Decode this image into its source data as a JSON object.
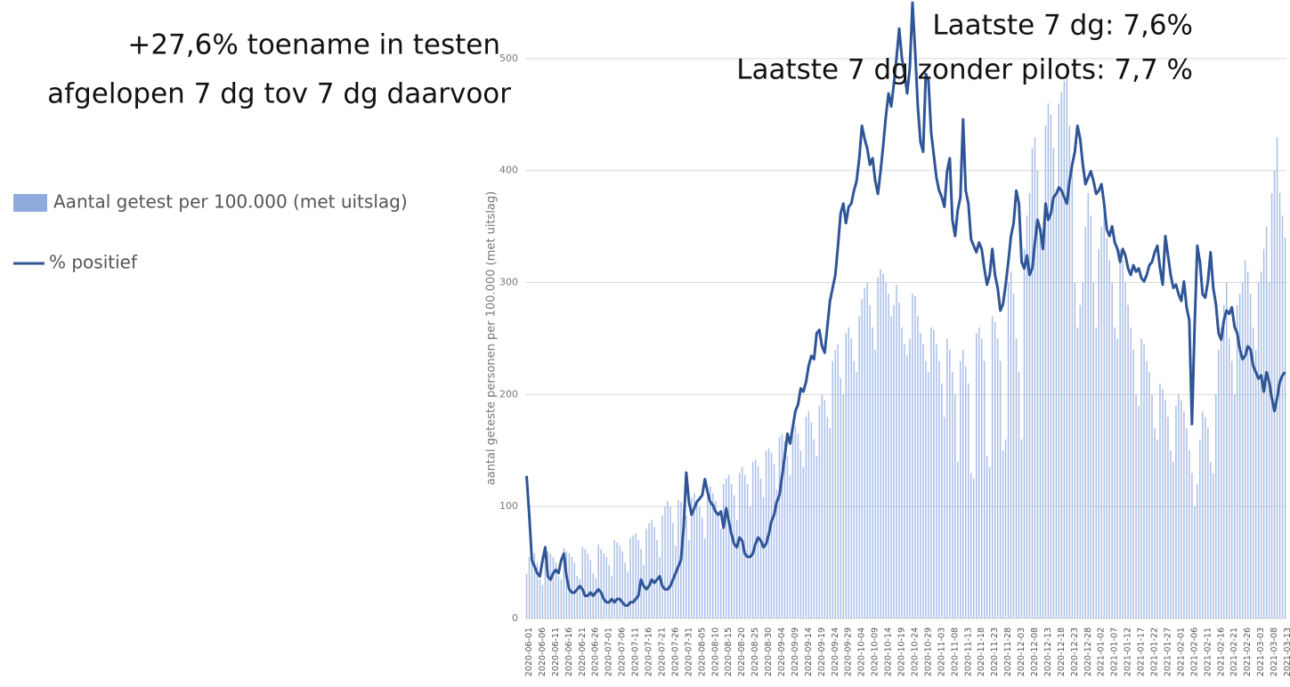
{
  "chart_data": {
    "type": "bar",
    "annotations": [
      "+27,6% toename in testen",
      "afgelopen 7 dg tov 7 dg daarvoor",
      "Laatste 7 dg: 7,6%",
      "Laatste 7 dg zonder pilots: 7,7 %"
    ],
    "y_label": "aantal geteste personen per 100.000 (met uitslag)",
    "categories": [
      "2020-06-01",
      null,
      null,
      null,
      null,
      "2020-06-06",
      null,
      null,
      null,
      null,
      "2020-06-11",
      null,
      null,
      null,
      null,
      "2020-06-16",
      null,
      null,
      null,
      null,
      "2020-06-21",
      null,
      null,
      null,
      null,
      "2020-06-26",
      null,
      null,
      null,
      null,
      "2020-07-01",
      null,
      null,
      null,
      null,
      "2020-07-06",
      null,
      null,
      null,
      null,
      "2020-07-11",
      null,
      null,
      null,
      null,
      "2020-07-16",
      null,
      null,
      null,
      null,
      "2020-07-21",
      null,
      null,
      null,
      null,
      "2020-07-26",
      null,
      null,
      null,
      null,
      "2020-07-31",
      null,
      null,
      null,
      null,
      "2020-08-05",
      null,
      null,
      null,
      null,
      "2020-08-10",
      null,
      null,
      null,
      null,
      "2020-08-15",
      null,
      null,
      null,
      null,
      "2020-08-20",
      null,
      null,
      null,
      null,
      "2020-08-25",
      null,
      null,
      null,
      null,
      "2020-08-30",
      null,
      null,
      null,
      null,
      "2020-09-04",
      null,
      null,
      null,
      null,
      "2020-09-09",
      null,
      null,
      null,
      null,
      "2020-09-14",
      null,
      null,
      null,
      null,
      "2020-09-19",
      null,
      null,
      null,
      null,
      "2020-09-24",
      null,
      null,
      null,
      null,
      "2020-09-29",
      null,
      null,
      null,
      null,
      "2020-10-04",
      null,
      null,
      null,
      null,
      "2020-10-09",
      null,
      null,
      null,
      null,
      "2020-10-14",
      null,
      null,
      null,
      null,
      "2020-10-19",
      null,
      null,
      null,
      null,
      "2020-10-24",
      null,
      null,
      null,
      null,
      "2020-10-29",
      null,
      null,
      null,
      null,
      "2020-11-03",
      null,
      null,
      null,
      null,
      "2020-11-08",
      null,
      null,
      null,
      null,
      "2020-11-13",
      null,
      null,
      null,
      null,
      "2020-11-18",
      null,
      null,
      null,
      null,
      "2020-11-23",
      null,
      null,
      null,
      null,
      "2020-11-28",
      null,
      null,
      null,
      null,
      "2020-12-03",
      null,
      null,
      null,
      null,
      "2020-12-08",
      null,
      null,
      null,
      null,
      "2020-12-13",
      null,
      null,
      null,
      null,
      "2020-12-18",
      null,
      null,
      null,
      null,
      "2020-12-23",
      null,
      null,
      null,
      null,
      "2020-12-28",
      null,
      null,
      null,
      null,
      "2021-01-02",
      null,
      null,
      null,
      null,
      "2021-01-07",
      null,
      null,
      null,
      null,
      "2021-01-12",
      null,
      null,
      null,
      null,
      "2021-01-17",
      null,
      null,
      null,
      null,
      "2021-01-22",
      null,
      null,
      null,
      null,
      "2021-01-27",
      null,
      null,
      null,
      null,
      "2021-02-01",
      null,
      null,
      null,
      null,
      "2021-02-06",
      null,
      null,
      null,
      null,
      "2021-02-11",
      null,
      null,
      null,
      null,
      "2021-02-16",
      null,
      null,
      null,
      null,
      "2021-02-21",
      null,
      null,
      null,
      null,
      "2021-02-26",
      null,
      null,
      null,
      null,
      "2021-03-03",
      null,
      null,
      null,
      null,
      "2021-03-08",
      null,
      null,
      null,
      null,
      "2021-03-13"
    ],
    "series": [
      {
        "name": "Aantal getest per 100.000 (met uitslag)",
        "type": "bar",
        "color": "#8faadc",
        "values": [
          40,
          55,
          60,
          58,
          50,
          35,
          30,
          62,
          60,
          58,
          55,
          50,
          38,
          35,
          63,
          60,
          58,
          55,
          50,
          38,
          35,
          64,
          62,
          58,
          52,
          40,
          36,
          66,
          62,
          58,
          55,
          48,
          38,
          70,
          68,
          65,
          60,
          50,
          42,
          72,
          74,
          76,
          70,
          62,
          48,
          80,
          85,
          88,
          82,
          70,
          55,
          92,
          100,
          105,
          100,
          85,
          65,
          106,
          104,
          98,
          92,
          70,
          108,
          112,
          106,
          100,
          90,
          72,
          115,
          118,
          112,
          105,
          95,
          80,
          120,
          125,
          128,
          120,
          110,
          88,
          130,
          135,
          128,
          120,
          100,
          140,
          142,
          136,
          125,
          108,
          150,
          152,
          148,
          138,
          115,
          162,
          165,
          158,
          145,
          128,
          168,
          172,
          165,
          150,
          135,
          180,
          185,
          175,
          160,
          145,
          190,
          200,
          195,
          180,
          170,
          230,
          240,
          245,
          215,
          200,
          255,
          260,
          250,
          230,
          220,
          270,
          285,
          295,
          300,
          280,
          260,
          240,
          305,
          312,
          308,
          300,
          290,
          270,
          280,
          298,
          282,
          260,
          245,
          235,
          250,
          290,
          288,
          270,
          255,
          245,
          230,
          220,
          260,
          258,
          245,
          230,
          210,
          180,
          250,
          240,
          220,
          200,
          140,
          230,
          240,
          225,
          210,
          130,
          125,
          255,
          260,
          250,
          230,
          145,
          135,
          270,
          265,
          250,
          230,
          150,
          160,
          300,
          310,
          290,
          250,
          220,
          160,
          330,
          360,
          380,
          420,
          430,
          400,
          350,
          330,
          440,
          460,
          450,
          420,
          380,
          460,
          470,
          480,
          490,
          440,
          400,
          300,
          260,
          280,
          300,
          350,
          380,
          360,
          300,
          260,
          330,
          350,
          370,
          340,
          320,
          300,
          260,
          250,
          330,
          320,
          300,
          280,
          260,
          240,
          200,
          190,
          250,
          245,
          230,
          220,
          200,
          170,
          160,
          210,
          205,
          195,
          180,
          150,
          140,
          190,
          200,
          195,
          185,
          170,
          150,
          130,
          100,
          120,
          160,
          185,
          180,
          170,
          140,
          130,
          200,
          240,
          260,
          280,
          300,
          250,
          230,
          200,
          280,
          290,
          300,
          320,
          310,
          290,
          260,
          240,
          300,
          310,
          330,
          350,
          300,
          380,
          400,
          430,
          380,
          360,
          340
        ]
      },
      {
        "name": "% positief",
        "type": "line",
        "axis": "y2",
        "color": "#2f5597",
        "values": [
          4.4,
          3.2,
          1.8,
          1.6,
          1.4,
          1.3,
          1.8,
          2.2,
          1.3,
          1.2,
          1.4,
          1.5,
          1.4,
          1.8,
          2.0,
          1.3,
          0.9,
          0.8,
          0.8,
          0.9,
          1.0,
          0.9,
          0.7,
          0.7,
          0.8,
          0.7,
          0.8,
          0.9,
          0.8,
          0.6,
          0.5,
          0.5,
          0.6,
          0.5,
          0.6,
          0.6,
          0.5,
          0.4,
          0.4,
          0.5,
          0.5,
          0.6,
          0.7,
          1.2,
          1.0,
          0.9,
          1.0,
          1.2,
          1.1,
          1.2,
          1.3,
          1.0,
          0.9,
          0.9,
          1.0,
          1.2,
          1.4,
          1.6,
          1.8,
          2.8,
          4.5,
          3.6,
          3.2,
          3.4,
          3.6,
          3.7,
          3.8,
          4.3,
          3.9,
          3.6,
          3.5,
          3.3,
          3.2,
          3.3,
          2.8,
          3.4,
          3.0,
          2.6,
          2.3,
          2.2,
          2.5,
          2.4,
          2.0,
          1.9,
          1.9,
          2.0,
          2.3,
          2.5,
          2.4,
          2.2,
          2.3,
          2.6,
          3.0,
          3.2,
          3.6,
          3.8,
          4.4,
          5.0,
          5.7,
          5.4,
          5.9,
          6.4,
          6.6,
          7.1,
          7.0,
          7.3,
          7.8,
          8.1,
          8.0,
          8.8,
          8.9,
          8.4,
          8.2,
          9.0,
          9.8,
          10.2,
          10.6,
          11.5,
          12.5,
          12.8,
          12.2,
          12.7,
          12.8,
          13.2,
          13.5,
          14.2,
          15.2,
          14.8,
          14.5,
          14.0,
          14.2,
          13.5,
          13.1,
          13.8,
          14.6,
          15.5,
          16.2,
          15.8,
          16.5,
          17.3,
          18.2,
          17.3,
          16.8,
          16.2,
          17.0,
          19.0,
          17.5,
          15.8,
          14.7,
          14.4,
          16.8,
          16.6,
          15.0,
          14.3,
          13.6,
          13.2,
          13.0,
          12.7,
          13.8,
          14.2,
          12.3,
          11.8,
          12.6,
          13.0,
          15.4,
          13.2,
          12.8,
          11.7,
          11.5,
          11.3,
          11.6,
          11.4,
          10.8,
          10.3,
          10.6,
          11.4,
          10.6,
          10.2,
          9.5,
          9.7,
          10.3,
          11.0,
          11.8,
          12.2,
          13.2,
          12.8,
          11.0,
          10.8,
          11.2,
          10.6,
          10.8,
          11.6,
          12.3,
          12.0,
          11.4,
          12.8,
          12.3,
          12.5,
          13.0,
          13.1,
          13.3,
          13.2,
          13.0,
          12.8,
          13.5,
          14.0,
          14.4,
          15.2,
          14.8,
          14.0,
          13.4,
          13.6,
          13.8,
          13.5,
          13.1,
          13.2,
          13.4,
          12.8,
          12.0,
          11.8,
          12.1,
          11.6,
          11.4,
          11.0,
          11.4,
          11.2,
          10.8,
          10.6,
          10.9,
          10.7,
          10.8,
          10.5,
          10.4,
          10.6,
          10.9,
          11.0,
          11.3,
          11.5,
          10.8,
          10.3,
          11.8,
          11.2,
          10.6,
          10.2,
          10.3,
          10.0,
          9.8,
          10.4,
          9.6,
          9.2,
          6.0,
          9.0,
          11.5,
          11.0,
          10.0,
          9.9,
          10.4,
          11.3,
          10.2,
          9.7,
          8.8,
          8.6,
          9.2,
          9.5,
          9.4,
          9.6,
          9.0,
          8.8,
          8.3,
          8.0,
          8.1,
          8.4,
          8.3,
          7.8,
          7.6,
          7.4,
          7.5,
          7.0,
          7.6,
          7.3,
          6.8,
          6.4,
          6.8,
          7.3,
          7.5,
          7.6
        ]
      }
    ],
    "ylim": [
      0,
      550
    ],
    "yticks": [
      0,
      100,
      200,
      300,
      400,
      500
    ],
    "y2lim": [
      0,
      19
    ],
    "grid": true,
    "legend": "left"
  }
}
